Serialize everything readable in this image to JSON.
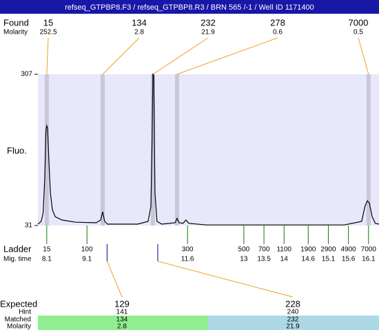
{
  "header": {
    "title": "refseq_GTPBP8.F3 / refseq_GTPBP8.R3 / BRN 565 /-1 / Well ID 1171400"
  },
  "found": {
    "label": "Found",
    "molarity_label": "Molarity",
    "sizes": [
      15,
      134,
      232,
      278,
      7000
    ],
    "molarity": [
      252.5,
      2.8,
      21.9,
      0.6,
      0.5
    ],
    "times": [
      8.1,
      9.49,
      10.74,
      11.34,
      16.1
    ]
  },
  "chart_data": {
    "type": "line",
    "y_label": "Fluo.",
    "xlim": [
      7.88,
      16.36
    ],
    "ylim": [
      31,
      307
    ],
    "yticks": [
      31,
      307
    ],
    "x": [
      7.88,
      7.96,
      8.01,
      8.05,
      8.08,
      8.1,
      8.12,
      8.15,
      8.19,
      8.24,
      8.31,
      8.48,
      8.82,
      9.33,
      9.44,
      9.49,
      9.54,
      9.61,
      10.36,
      10.62,
      10.69,
      10.72,
      10.74,
      10.76,
      10.79,
      10.84,
      10.96,
      11.29,
      11.34,
      11.39,
      11.49,
      11.56,
      11.63,
      12.07,
      15.5,
      15.93,
      16.01,
      16.07,
      16.12,
      16.19,
      16.27,
      16.36
    ],
    "series": [
      {
        "color": "#000000",
        "values": [
          33.5,
          38.5,
          53.6,
          116,
          204,
          213,
          209,
          154,
          91,
          60,
          47,
          41,
          37,
          36,
          41,
          56,
          38.5,
          33.5,
          33.5,
          38.5,
          66,
          192,
          307,
          305,
          91,
          38.5,
          33.5,
          36,
          44,
          36,
          35,
          41,
          35,
          32,
          32,
          38.5,
          66,
          76,
          72,
          47,
          35,
          33.5
        ]
      }
    ]
  },
  "ladder": {
    "label": "Ladder",
    "time_label": "Mig. time",
    "sizes": [
      15,
      100,
      300,
      500,
      700,
      1100,
      1900,
      2900,
      4900,
      7000
    ],
    "times": [
      8.1,
      9.1,
      11.6,
      13,
      13.5,
      14,
      14.6,
      15.1,
      15.6,
      16.1
    ]
  },
  "expected": {
    "label": "Expected",
    "hint_label": "Hint",
    "matched_label": "Matched",
    "molarity_label": "Molarity",
    "sizes": [
      129,
      228
    ],
    "times": [
      9.6,
      10.86
    ],
    "hint": [
      141,
      240
    ],
    "matched": [
      134,
      232
    ],
    "molarity": [
      2.8,
      21.9
    ]
  }
}
